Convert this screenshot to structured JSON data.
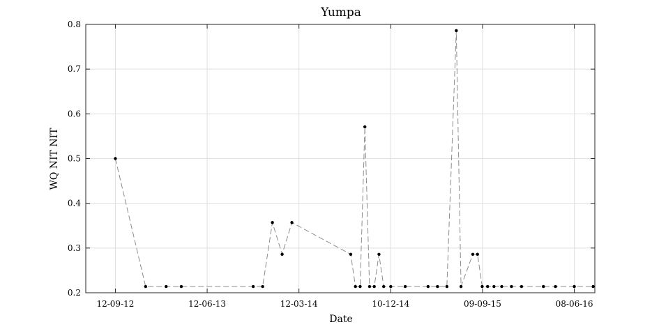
{
  "chart_data": {
    "type": "line",
    "title": "Yumpa",
    "xlabel": "Date",
    "ylabel": "WQ NIT NIT",
    "x_type": "date",
    "xlim": [
      "2012-06-16",
      "2016-08-08"
    ],
    "ylim": [
      0.2,
      0.8
    ],
    "x_ticks": [
      "2012-09-12",
      "2013-06-12",
      "2014-03-12",
      "2014-12-10",
      "2015-09-09",
      "2016-06-08"
    ],
    "x_tick_labels": [
      "12-09-12",
      "12-06-13",
      "12-03-14",
      "10-12-14",
      "09-09-15",
      "08-06-16"
    ],
    "y_ticks": [
      0.2,
      0.3,
      0.4,
      0.5,
      0.6,
      0.7,
      0.8
    ],
    "y_tick_labels": [
      "0.2",
      "0.3",
      "0.4",
      "0.5",
      "0.6",
      "0.7",
      "0.8"
    ],
    "grid": true,
    "legend": "none",
    "series": [
      {
        "line_style": "dashed",
        "color": "#8c8c8c",
        "marker_color": "#000000",
        "x": [
          "2012-09-12",
          "2012-12-11",
          "2013-02-10",
          "2013-03-27",
          "2013-10-27",
          "2013-11-24",
          "2013-12-23",
          "2014-01-21",
          "2014-02-19",
          "2014-08-13",
          "2014-08-27",
          "2014-09-10",
          "2014-09-24",
          "2014-10-08",
          "2014-10-22",
          "2014-11-05",
          "2014-11-19",
          "2014-12-10",
          "2015-01-22",
          "2015-03-31",
          "2015-04-28",
          "2015-05-26",
          "2015-06-23",
          "2015-07-07",
          "2015-08-11",
          "2015-08-25",
          "2015-09-08",
          "2015-09-24",
          "2015-10-13",
          "2015-11-05",
          "2015-12-04",
          "2016-01-03",
          "2016-03-08",
          "2016-04-13",
          "2016-06-08",
          "2016-08-03"
        ],
        "y": [
          0.5,
          0.214,
          0.214,
          0.214,
          0.214,
          0.214,
          0.357,
          0.286,
          0.357,
          0.286,
          0.214,
          0.214,
          0.571,
          0.214,
          0.214,
          0.286,
          0.214,
          0.214,
          0.214,
          0.214,
          0.214,
          0.214,
          0.786,
          0.214,
          0.286,
          0.286,
          0.214,
          0.214,
          0.214,
          0.214,
          0.214,
          0.214,
          0.214,
          0.214,
          0.214,
          0.214
        ]
      }
    ]
  }
}
